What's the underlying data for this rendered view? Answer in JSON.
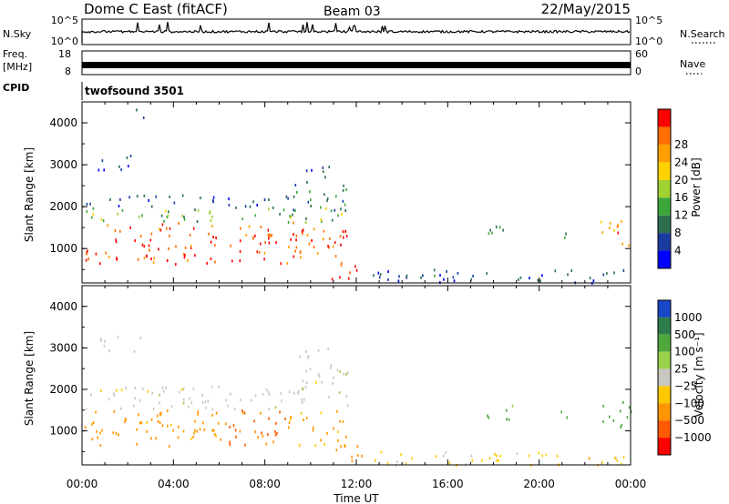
{
  "header": {
    "title": "Dome C East (fitACF)",
    "beam": "Beam 03",
    "date": "22/May/2015"
  },
  "top_panels": {
    "nsky_label": "N.Sky",
    "nsky_ticks": [
      "10^5",
      "10^0"
    ],
    "nsearch_label": "N.Search",
    "freq_label_1": "Freq.",
    "freq_label_2": "[MHz]",
    "freq_ticks": [
      "18",
      "8"
    ],
    "nave_label": "Nave",
    "nave_ticks": [
      "60",
      "0"
    ],
    "cpid_label": "CPID",
    "cpid_value": "twofsound 3501"
  },
  "colors": {
    "power_scale": [
      "#0000ff",
      "#1a3ca0",
      "#2e6e4e",
      "#3ca83c",
      "#a0d232",
      "#ffd200",
      "#ffa000",
      "#ff6e00",
      "#ff0000"
    ],
    "velocity_scale": [
      "#1a46c8",
      "#2d7d4b",
      "#4fa83c",
      "#9ad24b",
      "#c8c8c0",
      "#ffc800",
      "#ff9600",
      "#ff5a00",
      "#ff0000"
    ],
    "ground_scatter": "#a0a0a0"
  },
  "chart_data": [
    {
      "type": "heatmap",
      "name": "power-panel",
      "xlabel": "",
      "ylabel": "Slant Range [km]",
      "x_unit": "hours UT",
      "xlim": [
        0,
        24
      ],
      "ylim": [
        180,
        4500
      ],
      "yticks": [
        "1000",
        "2000",
        "3000",
        "4000"
      ],
      "colorbar": {
        "label": "Power [dB]",
        "ticks": [
          "4",
          "8",
          "12",
          "16",
          "20",
          "24",
          "28"
        ],
        "range": [
          0,
          32
        ]
      },
      "regions": [
        {
          "t": [
            0.1,
            11.6
          ],
          "r": [
            650,
            1650
          ],
          "value": 28
        },
        {
          "t": [
            0.1,
            11.6
          ],
          "r": [
            1650,
            2000
          ],
          "value": 14
        },
        {
          "t": [
            0.1,
            9.0
          ],
          "r": [
            2000,
            2300
          ],
          "value": 6
        },
        {
          "t": [
            9.0,
            11.7
          ],
          "r": [
            1900,
            2600
          ],
          "value": 8
        },
        {
          "t": [
            9.5,
            10.9
          ],
          "r": [
            2600,
            3050
          ],
          "value": 5
        },
        {
          "t": [
            10.9,
            12.4
          ],
          "r": [
            300,
            700
          ],
          "value": 30
        },
        {
          "t": [
            17.5,
            19.0
          ],
          "r": [
            1300,
            1650
          ],
          "value": 12
        },
        {
          "t": [
            20.3,
            21.2
          ],
          "r": [
            1250,
            1500
          ],
          "value": 10
        },
        {
          "t": [
            22.6,
            24.0
          ],
          "r": [
            1050,
            1750
          ],
          "value": 26
        },
        {
          "t": [
            0.7,
            2.6
          ],
          "r": [
            2900,
            3300
          ],
          "value": 5
        },
        {
          "t": [
            2.3,
            2.8
          ],
          "r": [
            4100,
            4400
          ],
          "value": 6
        },
        {
          "t": [
            12.5,
            24.0
          ],
          "r": [
            200,
            520
          ],
          "value": 6
        }
      ]
    },
    {
      "type": "heatmap",
      "name": "velocity-panel",
      "xlabel": "Time UT",
      "ylabel": "Slant Range [km]",
      "x_unit": "hours UT",
      "xlim": [
        0,
        24
      ],
      "ylim": [
        180,
        4500
      ],
      "xticks": [
        "00:00",
        "04:00",
        "08:00",
        "12:00",
        "16:00",
        "20:00",
        "00:00"
      ],
      "yticks": [
        "1000",
        "2000",
        "3000",
        "4000"
      ],
      "colorbar": {
        "label": "Velocity [m s⁻¹]",
        "ticks": [
          "1000",
          "500",
          "100",
          "25",
          "−25",
          "−100",
          "−500",
          "−1000"
        ]
      },
      "regions": [
        {
          "t": [
            0.1,
            6.2
          ],
          "r": [
            650,
            1550
          ],
          "value": -200
        },
        {
          "t": [
            6.2,
            9.0
          ],
          "r": [
            650,
            1550
          ],
          "value": -600
        },
        {
          "t": [
            9.0,
            11.6
          ],
          "r": [
            650,
            1550
          ],
          "value": -150
        },
        {
          "t": [
            0.1,
            11.6
          ],
          "r": [
            1550,
            2100
          ],
          "value": 0
        },
        {
          "t": [
            9.5,
            11.7
          ],
          "r": [
            2100,
            3050
          ],
          "value": 0
        },
        {
          "t": [
            10.9,
            12.4
          ],
          "r": [
            300,
            700
          ],
          "value": -300
        },
        {
          "t": [
            17.5,
            19.0
          ],
          "r": [
            1300,
            1650
          ],
          "value": 200
        },
        {
          "t": [
            20.3,
            21.2
          ],
          "r": [
            1250,
            1500
          ],
          "value": 150
        },
        {
          "t": [
            22.6,
            24.0
          ],
          "r": [
            1050,
            1750
          ],
          "value": 300
        },
        {
          "t": [
            0.7,
            2.6
          ],
          "r": [
            2900,
            3300
          ],
          "value": 0
        },
        {
          "t": [
            12.5,
            24.0
          ],
          "r": [
            200,
            520
          ],
          "value": -50
        }
      ]
    }
  ]
}
